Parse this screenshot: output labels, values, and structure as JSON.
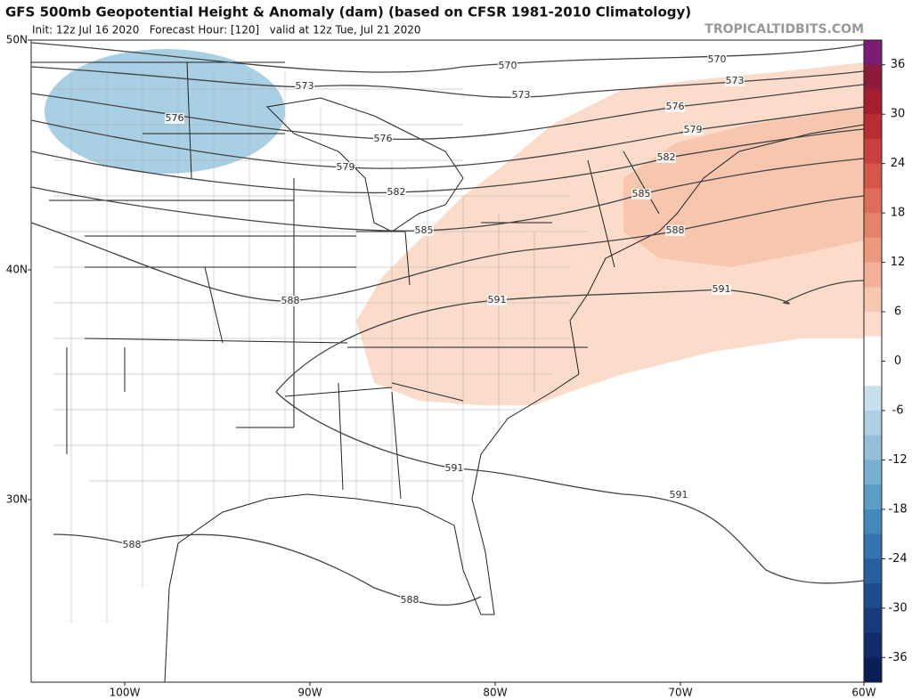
{
  "header": {
    "title": "GFS 500mb Geopotential Height & Anomaly (dam) (based on CFSR 1981-2010 Climatology)",
    "subtitle": "Init: 12z Jul 16 2020   Forecast Hour: [120]   valid at 12z Tue, Jul 21 2020",
    "source": "TROPICALTIDBITS.COM"
  },
  "lat_labels": [
    "50N",
    "40N",
    "30N"
  ],
  "lon_labels": [
    "100W",
    "90W",
    "80W",
    "70W",
    "60W"
  ],
  "contour_labels": [
    "570",
    "570",
    "573",
    "573",
    "573",
    "576",
    "576",
    "576",
    "579",
    "579",
    "582",
    "582",
    "585",
    "585",
    "588",
    "588",
    "591",
    "591",
    "591",
    "591",
    "588",
    "588"
  ],
  "colorbar": {
    "ticks": [
      36,
      30,
      24,
      18,
      12,
      6,
      0,
      -6,
      -12,
      -18,
      -24,
      -30,
      -36
    ],
    "colors": [
      "#7b1d74",
      "#8e1a3a",
      "#a41e2d",
      "#b92c32",
      "#c9403e",
      "#d5564a",
      "#dd6c58",
      "#e4826a",
      "#eb9a80",
      "#f1b097",
      "#f6c6ae",
      "#fbdcca",
      "#ffffff",
      "#ffffff",
      "#c9e0ec",
      "#aed0e3",
      "#93bfd9",
      "#78aed0",
      "#5d9cc6",
      "#4589bb",
      "#3474ae",
      "#285f9f",
      "#1e4b8d",
      "#163a7a",
      "#102b68",
      "#0b1f57"
    ]
  }
}
